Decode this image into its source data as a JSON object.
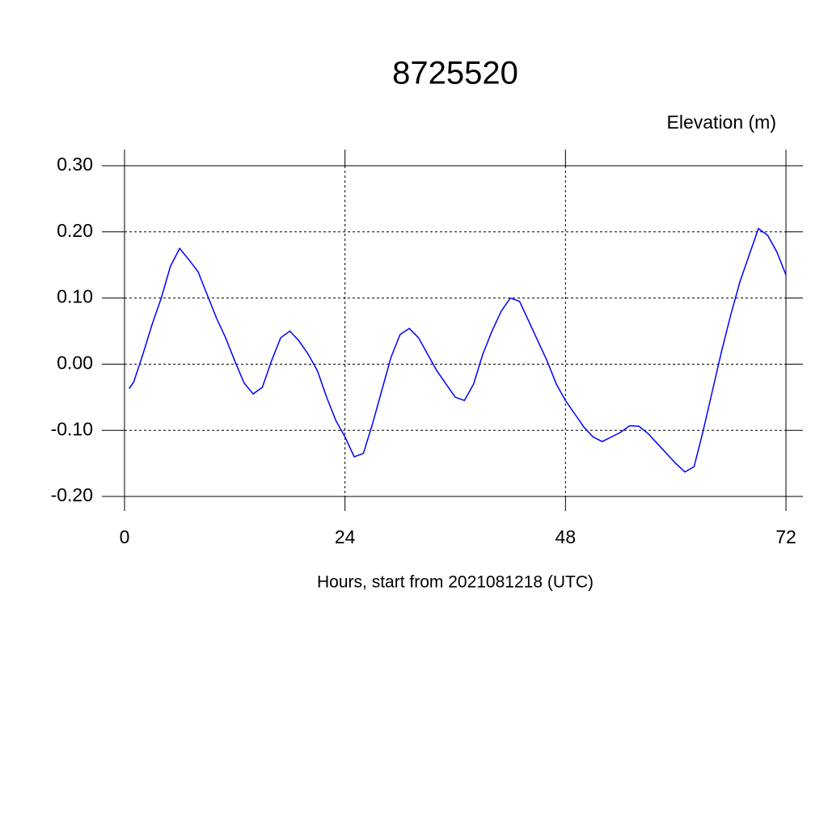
{
  "chart_data": {
    "type": "line",
    "title": "8725520",
    "ylabel": "Elevation (m)",
    "xlabel": "Hours, start from 2021081218 (UTC)",
    "x": [
      0.5,
      1,
      2,
      3,
      4,
      5,
      6,
      7,
      8,
      9,
      10,
      11,
      12,
      13,
      14,
      15,
      16,
      17,
      18,
      19,
      20,
      21,
      22,
      23,
      24,
      25,
      26,
      27,
      28,
      29,
      30,
      31,
      32,
      33,
      34,
      35,
      36,
      37,
      38,
      39,
      40,
      41,
      42,
      43,
      44,
      45,
      46,
      47,
      48,
      49,
      50,
      51,
      52,
      53,
      54,
      55,
      56,
      57,
      58,
      59,
      60,
      61,
      62,
      63,
      64,
      65,
      66,
      67,
      68,
      69,
      70,
      71,
      72
    ],
    "series": [
      {
        "name": "Elevation",
        "color": "#0000ff",
        "values": [
          -0.037,
          -0.027,
          0.015,
          0.06,
          0.1,
          0.148,
          0.175,
          0.158,
          0.14,
          0.105,
          0.07,
          0.04,
          0.005,
          -0.028,
          -0.045,
          -0.035,
          0.005,
          0.04,
          0.05,
          0.035,
          0.015,
          -0.01,
          -0.05,
          -0.085,
          -0.11,
          -0.14,
          -0.135,
          -0.09,
          -0.04,
          0.01,
          0.045,
          0.054,
          0.04,
          0.015,
          -0.01,
          -0.03,
          -0.05,
          -0.055,
          -0.03,
          0.015,
          0.05,
          0.08,
          0.1,
          0.095,
          0.065,
          0.035,
          0.005,
          -0.03,
          -0.055,
          -0.075,
          -0.095,
          -0.11,
          -0.117,
          -0.11,
          -0.103,
          -0.093,
          -0.094,
          -0.105,
          -0.12,
          -0.135,
          -0.15,
          -0.163,
          -0.155,
          -0.1,
          -0.04,
          0.02,
          0.075,
          0.125,
          0.165,
          0.205,
          0.195,
          0.17,
          0.135
        ]
      }
    ],
    "xlim": [
      0,
      72
    ],
    "xticks": [
      0,
      24,
      48,
      72
    ],
    "ylim": [
      -0.2,
      0.3
    ],
    "yticks": [
      {
        "value": 0.3,
        "label": "0.30"
      },
      {
        "value": 0.2,
        "label": "0.20"
      },
      {
        "value": 0.1,
        "label": "0.10"
      },
      {
        "value": 0,
        "label": "0.00"
      },
      {
        "value": -0.1,
        "label": "-0.10"
      },
      {
        "value": -0.2,
        "label": "-0.20"
      }
    ],
    "grid": true
  }
}
